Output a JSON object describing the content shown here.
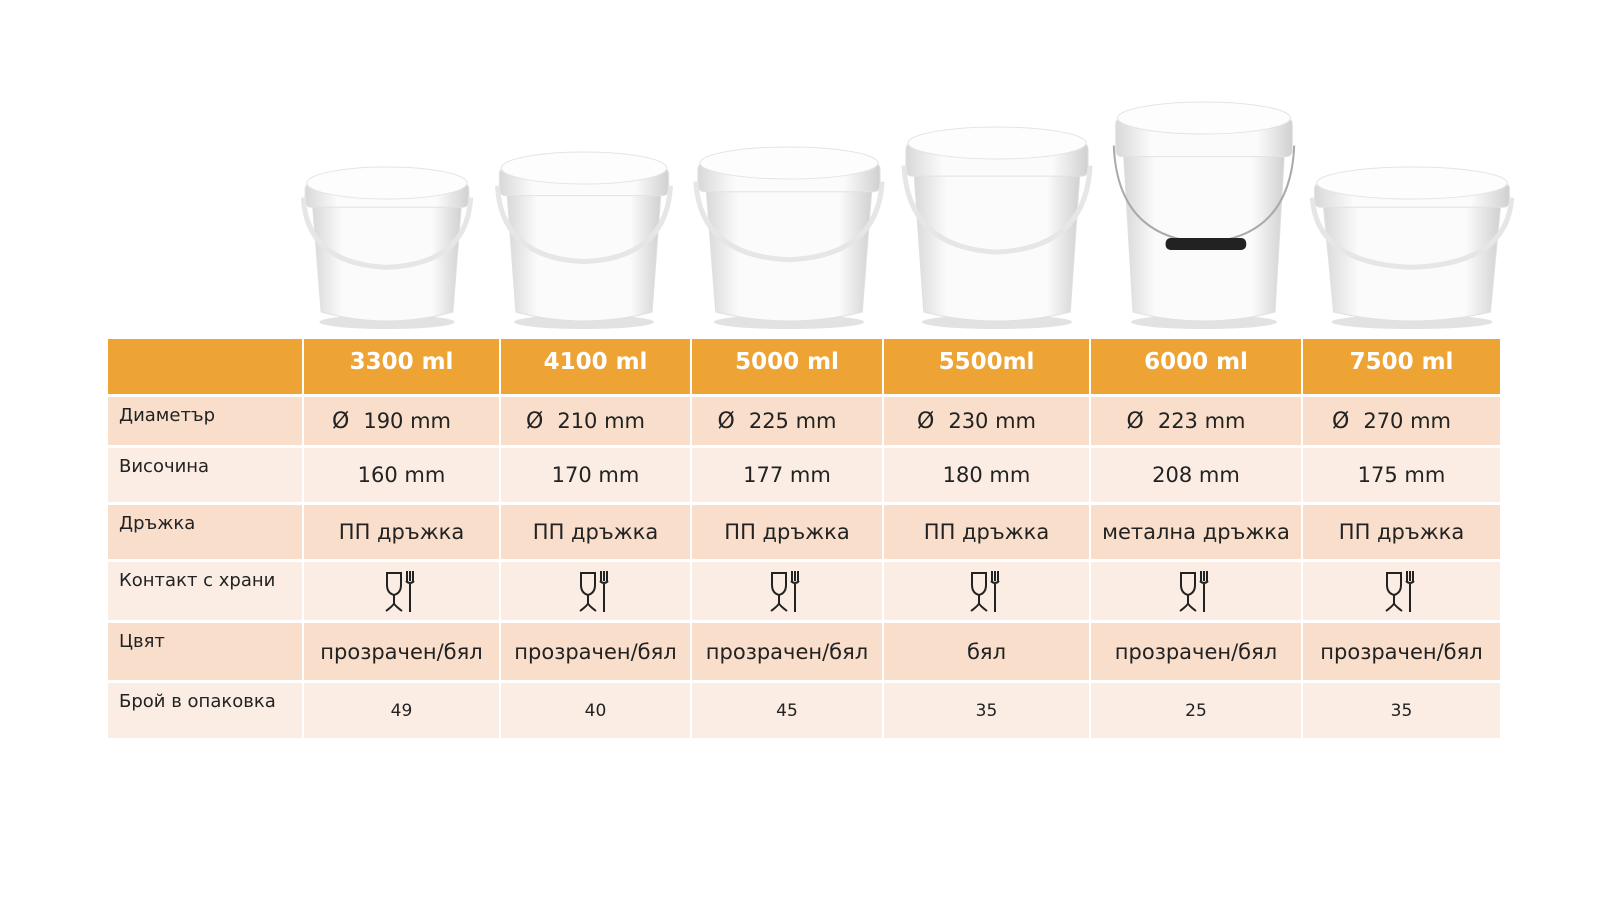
{
  "products": [
    {
      "volume": "3300 ml",
      "diameter": "190 mm",
      "height": "160 mm",
      "handle": "ПП дръжка",
      "color": "прозрачен/бял",
      "count": "49",
      "handle_type": "plastic"
    },
    {
      "volume": "4100 ml",
      "diameter": "210 mm",
      "height": "170 mm",
      "handle": "ПП дръжка",
      "color": "прозрачен/бял",
      "count": "40",
      "handle_type": "plastic"
    },
    {
      "volume": "5000 ml",
      "diameter": "225 mm",
      "height": "177 mm",
      "handle": "ПП дръжка",
      "color": "прозрачен/бял",
      "count": "45",
      "handle_type": "plastic"
    },
    {
      "volume": "5500ml",
      "diameter": "230 mm",
      "height": "180 mm",
      "handle": "ПП дръжка",
      "color": "бял",
      "count": "35",
      "handle_type": "plastic"
    },
    {
      "volume": "6000 ml",
      "diameter": "223 mm",
      "height": "208 mm",
      "handle": "метална дръжка",
      "color": "прозрачен/бял",
      "count": "25",
      "handle_type": "metal"
    },
    {
      "volume": "7500 ml",
      "diameter": "270 mm",
      "height": "175 mm",
      "handle": "ПП дръжка",
      "color": "прозрачен/бял",
      "count": "35",
      "handle_type": "plastic"
    }
  ],
  "labels": {
    "diameter": "Диаметър",
    "height": "Височина",
    "handle": "Дръжка",
    "food_contact": "Контакт с храни",
    "color": "Цвят",
    "count": "Брой в опаковка"
  },
  "diameter_symbol": "Ø",
  "icons": {
    "food_contact": "glass-fork-icon"
  },
  "colors": {
    "header": "#EDA435",
    "row_dark": "#F8DECB",
    "row_light": "#FBEDE4"
  }
}
